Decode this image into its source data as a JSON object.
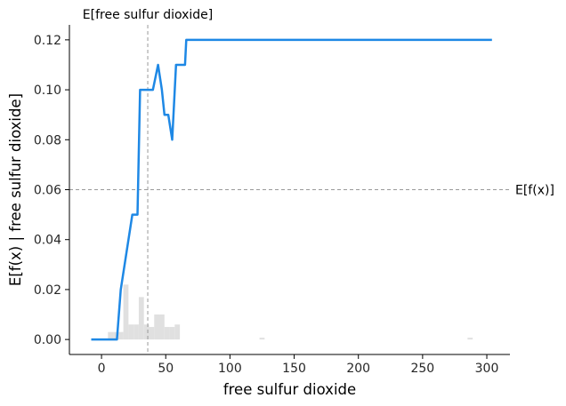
{
  "chart_data": {
    "type": "line",
    "title": "",
    "xlabel": "free sulfur dioxide",
    "ylabel": "E[f(x) | free sulfur dioxide]",
    "xlim": [
      -25,
      318
    ],
    "ylim": [
      -0.006,
      0.126
    ],
    "x_ticks": [
      0,
      50,
      100,
      150,
      200,
      250,
      300
    ],
    "y_ticks": [
      0.0,
      0.02,
      0.04,
      0.06,
      0.08,
      0.1,
      0.12
    ],
    "x_tick_labels": [
      "0",
      "50",
      "100",
      "150",
      "200",
      "250",
      "300"
    ],
    "y_tick_labels": [
      "0.00",
      "0.02",
      "0.04",
      "0.06",
      "0.08",
      "0.10",
      "0.12"
    ],
    "grid": false,
    "line_color": "#1e88e5",
    "series": [
      {
        "x": [
          -8,
          12,
          15,
          24,
          26,
          28,
          30,
          37,
          40,
          44,
          47,
          49,
          52,
          55,
          58,
          61,
          63,
          65,
          66,
          70,
          304
        ],
        "y": [
          0.0,
          0.0,
          0.02,
          0.05,
          0.05,
          0.05,
          0.1,
          0.1,
          0.1,
          0.11,
          0.1,
          0.09,
          0.09,
          0.08,
          0.11,
          0.11,
          0.11,
          0.11,
          0.12,
          0.12,
          0.12
        ]
      }
    ],
    "histogram": {
      "color": "#e0e0e0",
      "bin_centers": [
        7,
        11,
        15,
        19,
        23,
        27,
        31,
        35,
        39,
        43,
        47,
        51,
        55,
        59,
        125,
        287
      ],
      "heights": [
        0.003,
        0.003,
        0.003,
        0.022,
        0.006,
        0.006,
        0.017,
        0.006,
        0.005,
        0.01,
        0.01,
        0.005,
        0.005,
        0.006,
        0.0007,
        0.0007
      ]
    },
    "reference_lines": {
      "expected_value_y": 0.06,
      "expected_value_label": "E[f(x)]",
      "feature_mean_x": 36,
      "feature_mean_label": "E[free sulfur dioxide]"
    }
  }
}
